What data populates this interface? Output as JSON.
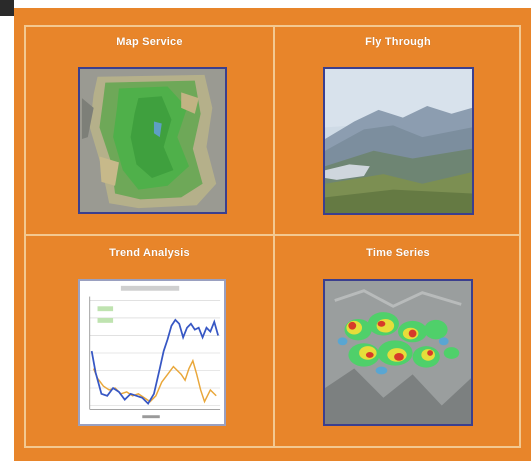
{
  "tiles": {
    "map_service": {
      "label": "Map Service"
    },
    "fly_through": {
      "label": "Fly Through"
    },
    "trend_analysis": {
      "label": "Trend Analysis"
    },
    "time_series": {
      "label": "Time Series"
    }
  },
  "colors": {
    "background": "#e8852a",
    "frame_line": "#f3c890",
    "thumb_border": "#3b3f8e",
    "title_text": "#ffffff"
  }
}
